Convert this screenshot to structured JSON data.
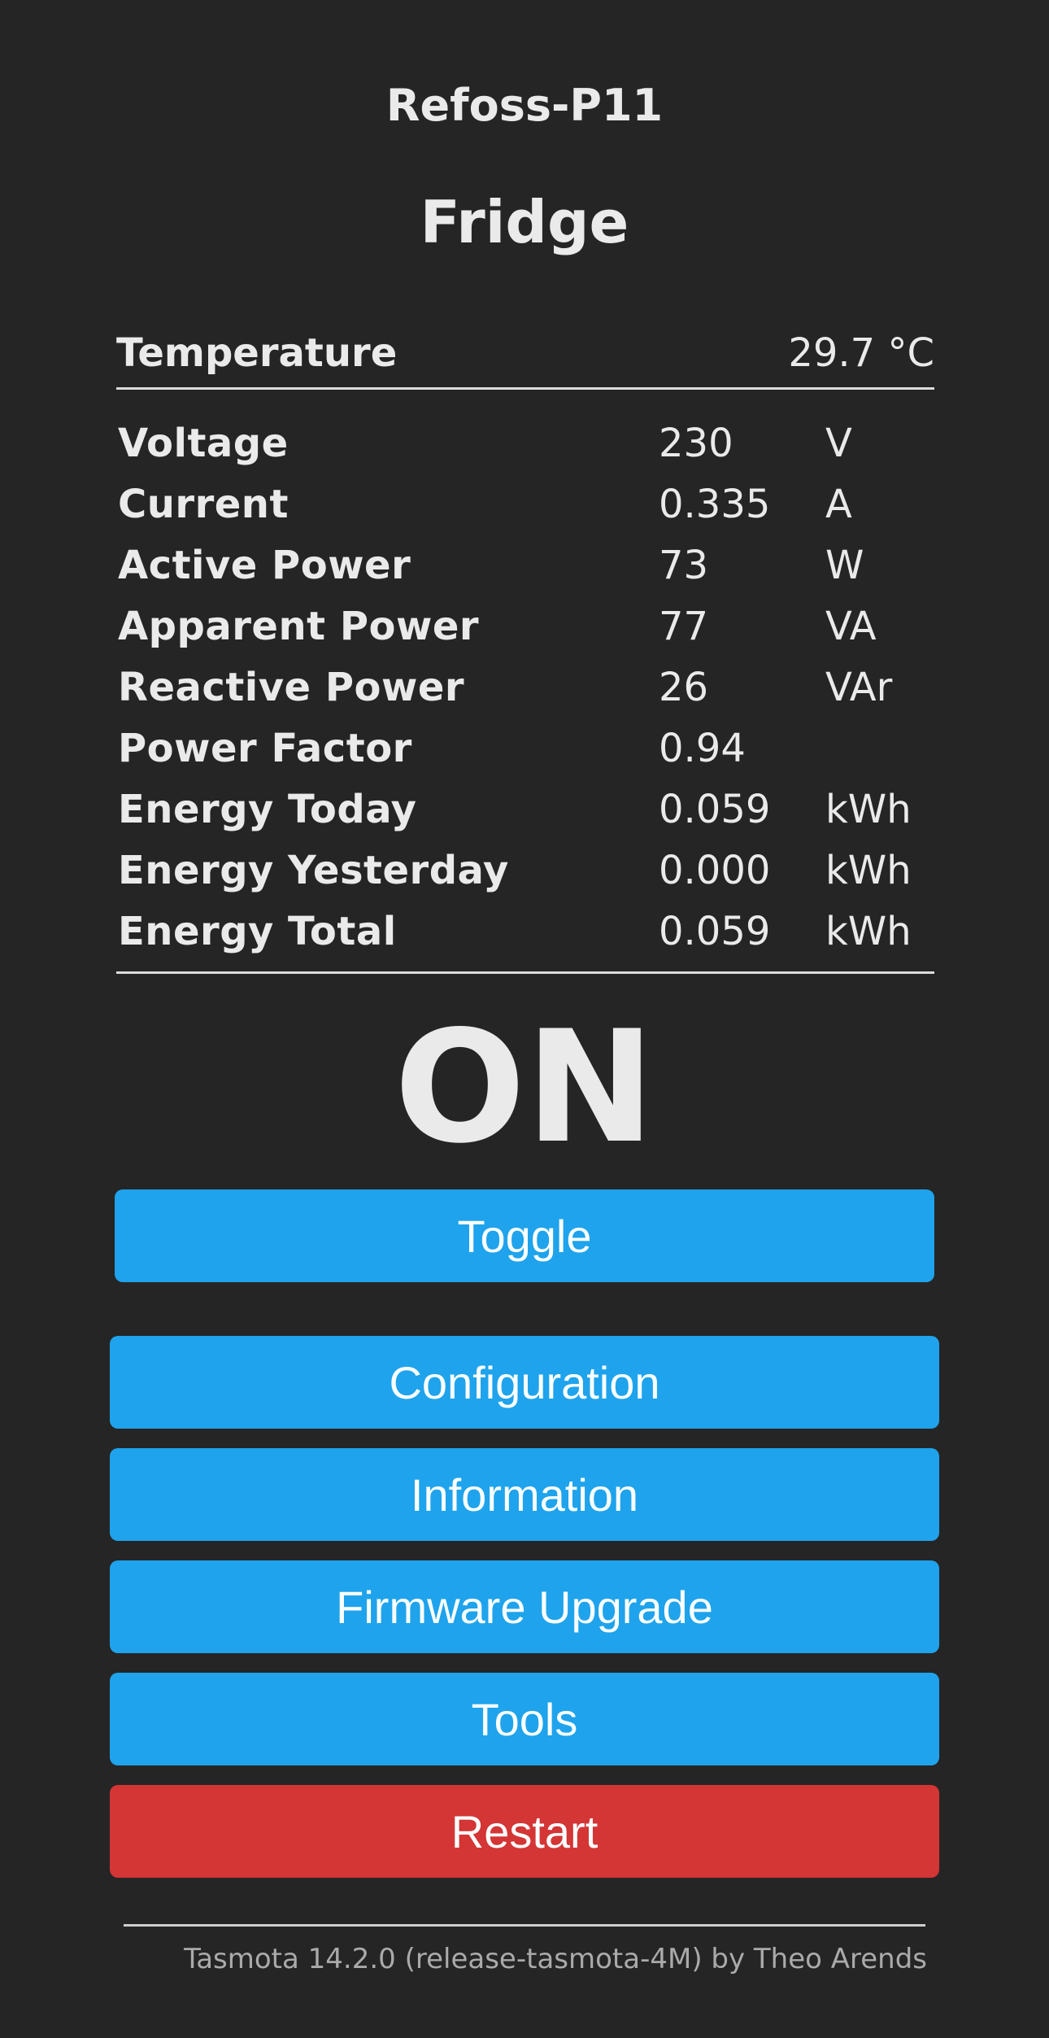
{
  "header": {
    "device_name": "Refoss-P11",
    "friendly_name": "Fridge"
  },
  "sensors": {
    "temperature": {
      "label": "Temperature",
      "value": "29.7 °C"
    },
    "energy": [
      {
        "label": "Voltage",
        "value": "230",
        "unit": "V"
      },
      {
        "label": "Current",
        "value": "0.335",
        "unit": "A"
      },
      {
        "label": "Active Power",
        "value": "73",
        "unit": "W"
      },
      {
        "label": "Apparent Power",
        "value": "77",
        "unit": "VA"
      },
      {
        "label": "Reactive Power",
        "value": "26",
        "unit": "VAr"
      },
      {
        "label": "Power Factor",
        "value": "0.94",
        "unit": ""
      },
      {
        "label": "Energy Today",
        "value": "0.059",
        "unit": "kWh"
      },
      {
        "label": "Energy Yesterday",
        "value": "0.000",
        "unit": "kWh"
      },
      {
        "label": "Energy Total",
        "value": "0.059",
        "unit": "kWh"
      }
    ]
  },
  "power_state": "ON",
  "buttons": {
    "toggle": "Toggle",
    "configuration": "Configuration",
    "information": "Information",
    "firmware_upgrade": "Firmware Upgrade",
    "tools": "Tools",
    "restart": "Restart"
  },
  "colors": {
    "background": "#252525",
    "text": "#eaeaea",
    "button": "#1fa3ec",
    "button_danger": "#d43535",
    "footer_text": "#aaaaaa"
  },
  "footer": {
    "text": "Tasmota 14.2.0 (release-tasmota-4M) by Theo Arends"
  }
}
